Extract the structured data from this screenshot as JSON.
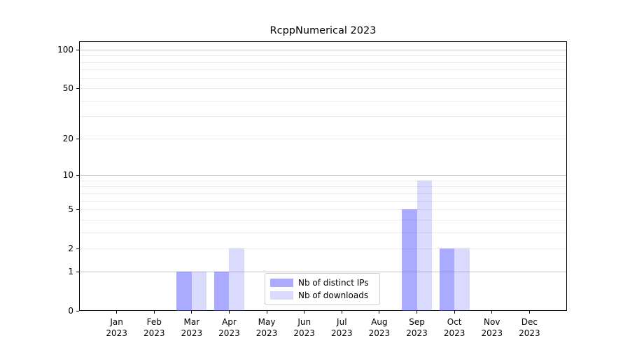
{
  "title": "RcppNumerical 2023",
  "chart_data": {
    "type": "bar",
    "title": "RcppNumerical 2023",
    "categories": [
      "Jan",
      "Feb",
      "Mar",
      "Apr",
      "May",
      "Jun",
      "Jul",
      "Aug",
      "Sep",
      "Oct",
      "Nov",
      "Dec"
    ],
    "x_year": "2023",
    "series": [
      {
        "name": "Nb of distinct IPs",
        "color": "rgba(85,85,255,0.50)",
        "values": [
          0,
          0,
          1,
          1,
          0,
          0,
          0,
          0,
          5,
          2,
          0,
          0
        ]
      },
      {
        "name": "Nb of downloads",
        "color": "rgba(85,85,255,0.22)",
        "values": [
          0,
          0,
          1,
          2,
          0,
          0,
          0,
          0,
          9,
          2,
          0,
          0
        ]
      }
    ],
    "y_axis": {
      "scale": "log1p",
      "tick_values": [
        0,
        1,
        2,
        5,
        10,
        20,
        50,
        100
      ],
      "major_gridlines": [
        1,
        10,
        100
      ],
      "minor_gridlines": [
        2,
        3,
        4,
        5,
        6,
        7,
        8,
        9,
        20,
        30,
        40,
        50,
        60,
        70,
        80,
        90
      ],
      "min": 0,
      "max": 116
    },
    "grid": "horizontal-only",
    "legend": {
      "position": "inside-bottom-center",
      "items": [
        "Nb of distinct IPs",
        "Nb of downloads"
      ]
    },
    "colors": {
      "bar_ips_hex": "#abaafa",
      "bar_downloads_hex": "#dbdbfa",
      "major_grid": "#c6c6c6",
      "minor_grid": "#ececec"
    }
  }
}
